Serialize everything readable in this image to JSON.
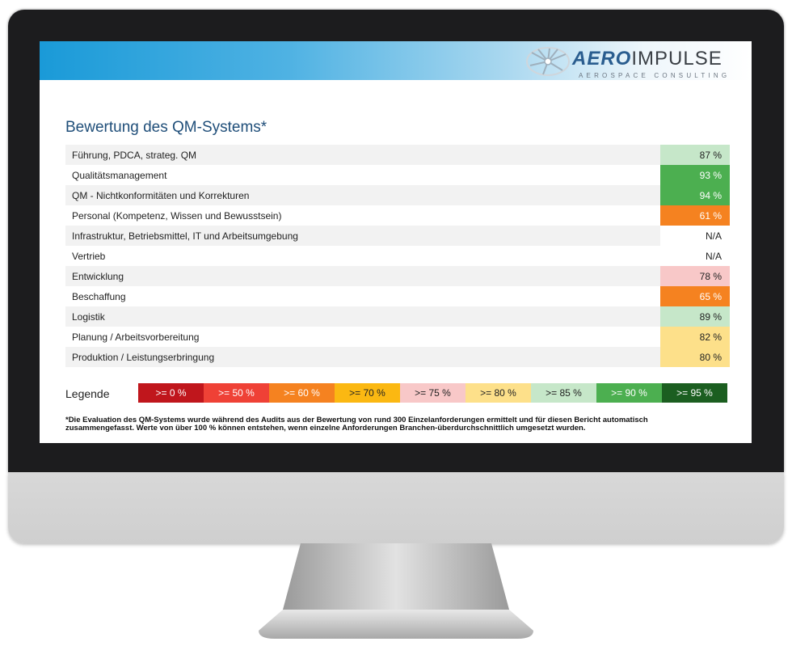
{
  "logo": {
    "word_left": "AERO",
    "word_right": "IMPULSE",
    "subtitle": "AEROSPACE CONSULTING"
  },
  "title": "Bewertung des QM-Systems*",
  "rows": [
    {
      "label": "Führung, PDCA, strateg. QM",
      "value": "87 %",
      "color": "#c6e7c9",
      "text_color": "#222222"
    },
    {
      "label": "Qualitätsmanagement",
      "value": "93 %",
      "color": "#4caf50",
      "text_color": "#ffffff"
    },
    {
      "label": "QM - Nichtkonformitäten und Korrekturen",
      "value": "94 %",
      "color": "#4caf50",
      "text_color": "#ffffff"
    },
    {
      "label": "Personal (Kompetenz, Wissen und Bewusstsein)",
      "value": "61 %",
      "color": "#f58220",
      "text_color": "#ffffff"
    },
    {
      "label": "Infrastruktur, Betriebsmittel, IT und Arbeitsumgebung",
      "value": "N/A",
      "color": "transparent",
      "text_color": "#222222"
    },
    {
      "label": "Vertrieb",
      "value": "N/A",
      "color": "transparent",
      "text_color": "#222222"
    },
    {
      "label": "Entwicklung",
      "value": "78 %",
      "color": "#f8c8c8",
      "text_color": "#222222"
    },
    {
      "label": "Beschaffung",
      "value": "65 %",
      "color": "#f58220",
      "text_color": "#ffffff"
    },
    {
      "label": "Logistik",
      "value": "89 %",
      "color": "#c6e7c9",
      "text_color": "#222222"
    },
    {
      "label": "Planung / Arbeitsvorbereitung",
      "value": "82 %",
      "color": "#fde08a",
      "text_color": "#222222"
    },
    {
      "label": "Produktion / Leistungserbringung",
      "value": "80 %",
      "color": "#fde08a",
      "text_color": "#222222"
    }
  ],
  "legend": {
    "label": "Legende",
    "items": [
      {
        "label": ">= 0 %",
        "color": "#c0161c",
        "text_color": "#ffffff"
      },
      {
        "label": ">= 50 %",
        "color": "#ef4136",
        "text_color": "#ffffff"
      },
      {
        "label": ">= 60 %",
        "color": "#f58220",
        "text_color": "#ffffff"
      },
      {
        "label": ">= 70 %",
        "color": "#fbb812",
        "text_color": "#222222"
      },
      {
        "label": ">= 75 %",
        "color": "#f8c8c8",
        "text_color": "#222222"
      },
      {
        "label": ">= 80 %",
        "color": "#fde08a",
        "text_color": "#222222"
      },
      {
        "label": ">= 85 %",
        "color": "#c6e7c9",
        "text_color": "#222222"
      },
      {
        "label": ">= 90 %",
        "color": "#4caf50",
        "text_color": "#ffffff"
      },
      {
        "label": ">= 95 %",
        "color": "#1b5e20",
        "text_color": "#ffffff"
      }
    ]
  },
  "footnote": "*Die Evaluation des QM-Systems wurde während des Audits aus der Bewertung von rund 300 Einzelanforderungen ermittelt und für diesen Bericht automatisch zusammengefasst. Werte von über 100 % können entstehen, wenn einzelne Anforderungen Branchen-überdurchschnittlich umgesetzt wurden."
}
